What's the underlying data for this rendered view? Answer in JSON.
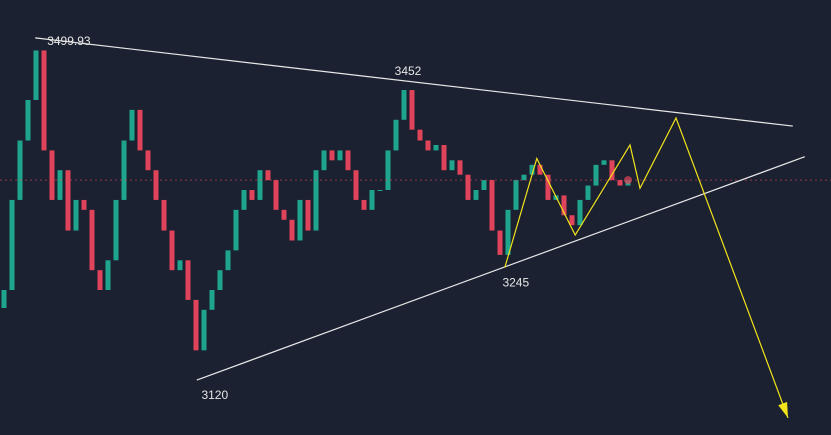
{
  "chart_data": {
    "type": "candlestick",
    "ylim": [
      3059,
      3542
    ],
    "xlim": [
      0,
      103.875
    ],
    "up_color": "#1fa58e",
    "down_color": "#e0445a",
    "open": [
      3200,
      3220,
      3320,
      3386,
      3431,
      3486,
      3375,
      3320,
      3353,
      3286,
      3320,
      3309,
      3242,
      3220,
      3253,
      3320,
      3386,
      3420,
      3375,
      3353,
      3320,
      3286,
      3242,
      3253,
      3209,
      3153,
      3198,
      3220,
      3242,
      3264,
      3309,
      3331,
      3320,
      3353,
      3342,
      3309,
      3298,
      3275,
      3320,
      3286,
      3353,
      3375,
      3364,
      3375,
      3353,
      3320,
      3309,
      3331,
      3331,
      3375,
      3409,
      3442,
      3398,
      3386,
      3375,
      3381,
      3353,
      3364,
      3348,
      3320,
      3331,
      3342,
      3286,
      3259,
      3309,
      3342,
      3348,
      3359,
      3348,
      3320,
      3325,
      3303,
      3292,
      3320,
      3336,
      3359,
      3364,
      3342,
      3336
    ],
    "close": [
      3220,
      3320,
      3386,
      3431,
      3486,
      3375,
      3320,
      3353,
      3286,
      3320,
      3309,
      3242,
      3220,
      3253,
      3320,
      3386,
      3420,
      3375,
      3353,
      3320,
      3286,
      3242,
      3253,
      3209,
      3153,
      3198,
      3220,
      3242,
      3264,
      3309,
      3331,
      3320,
      3353,
      3342,
      3309,
      3298,
      3275,
      3320,
      3286,
      3353,
      3375,
      3364,
      3375,
      3353,
      3320,
      3309,
      3331,
      3331,
      3375,
      3409,
      3442,
      3398,
      3386,
      3375,
      3381,
      3353,
      3364,
      3348,
      3320,
      3331,
      3342,
      3286,
      3259,
      3309,
      3342,
      3348,
      3359,
      3348,
      3320,
      3325,
      3303,
      3292,
      3320,
      3336,
      3359,
      3364,
      3342,
      3336,
      3342
    ],
    "annotations": [
      {
        "index": 4.4,
        "value": 3499.93
      },
      {
        "index": 51,
        "value": 3452
      },
      {
        "index": 63.1,
        "value": 3245
      },
      {
        "index": 24.6,
        "value": 3120
      }
    ],
    "trendlines": {
      "color": "#e8e8e8",
      "lines": [
        {
          "x": [
            4.4,
            99.1
          ],
          "y": [
            3499.93,
            3402
          ]
        },
        {
          "x": [
            24.6,
            100.6
          ],
          "y": [
            3120,
            3368
          ]
        }
      ]
    },
    "projection": {
      "color": "#f2e31b",
      "x": [
        63.1,
        67.1,
        71.9,
        78.75,
        80,
        84.5,
        98.5
      ],
      "y": [
        3245,
        3366,
        3281,
        3381,
        3333,
        3411,
        3078
      ]
    }
  }
}
